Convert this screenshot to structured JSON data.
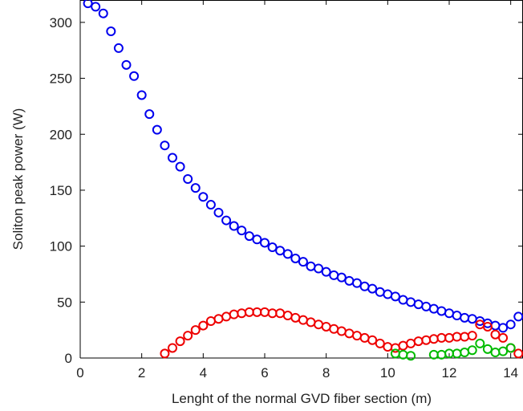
{
  "chart_data": {
    "type": "scatter",
    "xlabel": "Lenght of the normal GVD fiber section (m)",
    "ylabel": "Soliton peak power (W)",
    "xlim": [
      0,
      14.4
    ],
    "ylim": [
      0,
      320
    ],
    "xticks": [
      0,
      2,
      4,
      6,
      8,
      10,
      12,
      14
    ],
    "yticks": [
      0,
      50,
      100,
      150,
      200,
      250,
      300
    ],
    "grid": false,
    "legend": "none",
    "marker": "open-circle",
    "series": [
      {
        "color": "#0000ee",
        "x": [
          0.25,
          0.5,
          0.75,
          1.0,
          1.25,
          1.5,
          1.75,
          2.0,
          2.25,
          2.5,
          2.75,
          3.0,
          3.25,
          3.5,
          3.75,
          4.0,
          4.25,
          4.5,
          4.75,
          5.0,
          5.25,
          5.5,
          5.75,
          6.0,
          6.25,
          6.5,
          6.75,
          7.0,
          7.25,
          7.5,
          7.75,
          8.0,
          8.25,
          8.5,
          8.75,
          9.0,
          9.25,
          9.5,
          9.75,
          10.0,
          10.25,
          10.5,
          10.75,
          11.0,
          11.25,
          11.5,
          11.75,
          12.0,
          12.25,
          12.5,
          12.75,
          13.0,
          13.25,
          13.5,
          13.75,
          14.0,
          14.25
        ],
        "y": [
          317,
          314,
          308,
          292,
          277,
          262,
          252,
          235,
          218,
          204,
          190,
          179,
          171,
          160,
          152,
          144,
          137,
          130,
          123,
          118,
          114,
          109,
          106,
          103,
          99,
          96,
          93,
          89,
          86,
          82,
          80,
          77,
          74,
          72,
          69,
          67,
          64,
          62,
          59,
          57,
          55,
          52,
          50,
          48,
          46,
          44,
          42,
          40,
          38,
          36,
          35,
          33,
          31,
          29,
          27,
          30,
          37
        ]
      },
      {
        "color": "#ee0000",
        "x": [
          2.75,
          3.0,
          3.25,
          3.5,
          3.75,
          4.0,
          4.25,
          4.5,
          4.75,
          5.0,
          5.25,
          5.5,
          5.75,
          6.0,
          6.25,
          6.5,
          6.75,
          7.0,
          7.25,
          7.5,
          7.75,
          8.0,
          8.25,
          8.5,
          8.75,
          9.0,
          9.25,
          9.5,
          9.75,
          10.0,
          10.25,
          10.5,
          10.75,
          11.0,
          11.25,
          11.5,
          11.75,
          12.0,
          12.25,
          12.5,
          12.75,
          13.0,
          13.25,
          13.5,
          13.75,
          14.0,
          14.25
        ],
        "y": [
          4,
          9,
          15,
          20,
          25,
          29,
          33,
          35,
          37,
          39,
          40,
          41,
          41,
          41,
          40,
          40,
          38,
          36,
          34,
          32,
          30,
          28,
          26,
          24,
          22,
          20,
          18,
          16,
          13,
          10,
          9,
          11,
          13,
          15,
          16,
          17,
          18,
          18,
          19,
          19,
          20,
          30,
          28,
          21,
          18,
          9,
          4
        ]
      },
      {
        "color": "#00bb00",
        "x": [
          10.25,
          10.5,
          10.75,
          11.5,
          11.75,
          12.0,
          12.25,
          12.5,
          12.75,
          13.0,
          13.25,
          13.5,
          13.75,
          14.0
        ],
        "y": [
          4,
          3,
          2,
          3,
          3,
          4,
          4,
          5,
          7,
          13,
          8,
          5,
          6,
          9
        ]
      }
    ]
  }
}
